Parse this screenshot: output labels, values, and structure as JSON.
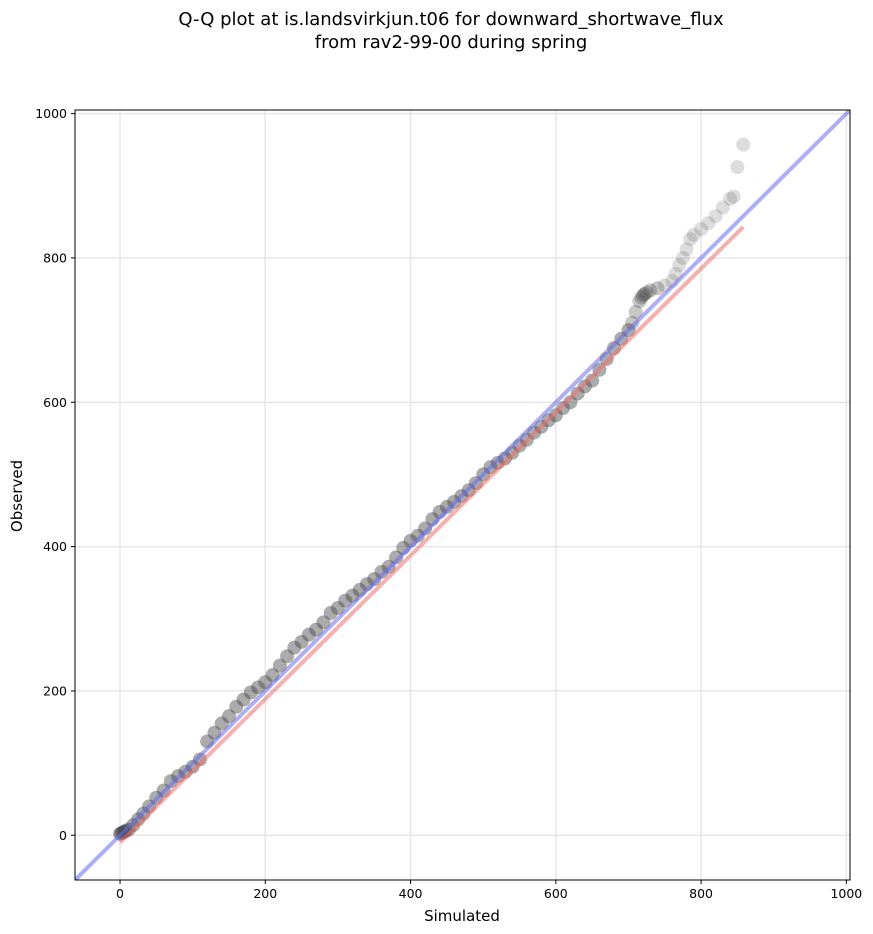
{
  "chart_data": {
    "type": "scatter",
    "title_line1": "Q-Q plot at is.landsvirkjun.t06 for downward_shortwave_flux",
    "title_line2": "from rav2-99-00 during spring",
    "xlabel": "Simulated",
    "ylabel": "Observed",
    "xlim": [
      -62,
      1005
    ],
    "ylim": [
      -62,
      1005
    ],
    "xticks": [
      0,
      200,
      400,
      600,
      800,
      1000
    ],
    "yticks": [
      0,
      200,
      400,
      600,
      800,
      1000
    ],
    "grid": true,
    "colors": {
      "points": "#444444",
      "one_to_one_line": "#6b6bf0",
      "fit_line": "#f07070"
    },
    "series": [
      {
        "kind": "points",
        "x": [
          0,
          2,
          4,
          6,
          8,
          12,
          18,
          25,
          32,
          40,
          50,
          60,
          70,
          80,
          90,
          100,
          110,
          120,
          130,
          140,
          150,
          160,
          170,
          180,
          190,
          200,
          210,
          220,
          230,
          240,
          250,
          260,
          270,
          280,
          290,
          300,
          310,
          320,
          330,
          340,
          350,
          360,
          370,
          380,
          390,
          400,
          410,
          420,
          430,
          440,
          450,
          460,
          470,
          480,
          490,
          500,
          510,
          520,
          530,
          540,
          550,
          560,
          570,
          580,
          590,
          600,
          610,
          620,
          630,
          640,
          650,
          660,
          670,
          680,
          690,
          700,
          705,
          710,
          715,
          718,
          720,
          722,
          725,
          730,
          740,
          750,
          760,
          765,
          770,
          775,
          780,
          785,
          790,
          800,
          810,
          820,
          830,
          840,
          845,
          850,
          858
        ],
        "y": [
          2,
          3,
          4,
          5,
          6,
          8,
          14,
          22,
          30,
          40,
          52,
          62,
          75,
          82,
          88,
          95,
          105,
          130,
          142,
          155,
          165,
          178,
          188,
          198,
          205,
          212,
          222,
          235,
          248,
          260,
          268,
          278,
          285,
          295,
          308,
          315,
          325,
          332,
          340,
          348,
          355,
          365,
          372,
          385,
          398,
          408,
          415,
          425,
          438,
          448,
          455,
          462,
          470,
          478,
          488,
          500,
          510,
          516,
          522,
          530,
          540,
          548,
          558,
          566,
          575,
          582,
          592,
          600,
          612,
          622,
          630,
          645,
          660,
          675,
          688,
          700,
          710,
          725,
          740,
          745,
          748,
          750,
          752,
          755,
          758,
          762,
          768,
          778,
          790,
          800,
          812,
          826,
          832,
          840,
          848,
          858,
          870,
          882,
          885,
          926,
          957
        ]
      },
      {
        "kind": "line",
        "name": "1:1",
        "x": [
          -62,
          1005
        ],
        "y": [
          -62,
          1005
        ]
      },
      {
        "kind": "line",
        "name": "fit",
        "x": [
          0,
          858
        ],
        "y": [
          -10,
          843
        ]
      }
    ]
  }
}
